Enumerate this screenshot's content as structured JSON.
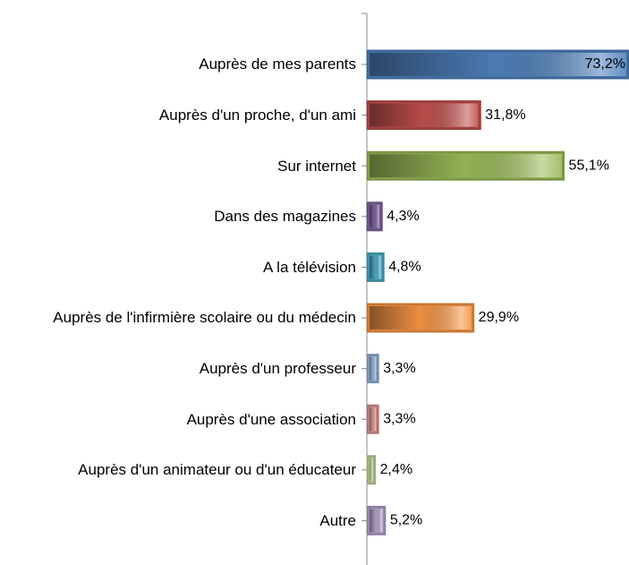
{
  "chart_data": {
    "type": "bar",
    "orientation": "horizontal",
    "categories": [
      "Auprès de mes parents",
      "Auprès d'un proche, d'un ami",
      "Sur internet",
      "Dans des magazines",
      "A la télévision",
      "Auprès de l'infirmière scolaire ou du médecin",
      "Auprès d'un professeur",
      "Auprès d'une association",
      "Auprès d'un animateur ou d'un éducateur",
      "Autre"
    ],
    "values": [
      73.2,
      31.8,
      55.1,
      4.3,
      4.8,
      29.9,
      3.3,
      3.3,
      2.4,
      5.2
    ],
    "value_labels": [
      "73,2%",
      "31,8%",
      "55,1%",
      "4,3%",
      "4,8%",
      "29,9%",
      "3,3%",
      "3,3%",
      "2,4%",
      "5,2%"
    ],
    "colors": [
      "#4f81bd",
      "#c0504d",
      "#9bbb59",
      "#8064a2",
      "#4bacc6",
      "#f79646",
      "#95b3d7",
      "#d99694",
      "#c3d69b",
      "#b3a2c7"
    ],
    "xlim": [
      0,
      73.2
    ]
  }
}
